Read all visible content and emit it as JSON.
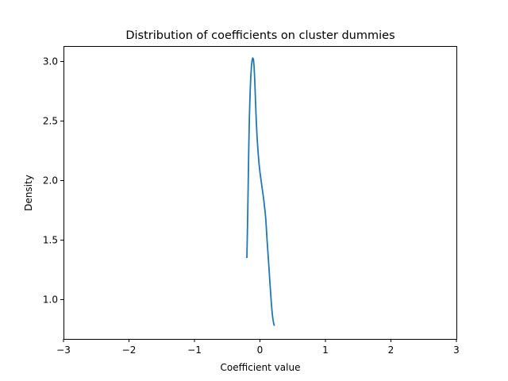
{
  "chart_data": {
    "type": "line",
    "title": "Distribution of coefficients on cluster dummies",
    "xlabel": "Coefficient value",
    "ylabel": "Density",
    "xlim": [
      -3,
      3
    ],
    "ylim": [
      0.67,
      3.13
    ],
    "xticks": [
      -3,
      -2,
      -1,
      0,
      1,
      2,
      3
    ],
    "xtick_labels": [
      "−3",
      "−2",
      "−1",
      "0",
      "1",
      "2",
      "3"
    ],
    "yticks": [
      1.0,
      1.5,
      2.0,
      2.5,
      3.0
    ],
    "ytick_labels": [
      "1.0",
      "1.5",
      "2.0",
      "2.5",
      "3.0"
    ],
    "grid": false,
    "legend": "none",
    "series": [
      {
        "color": "#1f77b4",
        "x": [
          -0.2,
          -0.19,
          -0.18,
          -0.17,
          -0.16,
          -0.15,
          -0.14,
          -0.13,
          -0.12,
          -0.11,
          -0.1,
          -0.09,
          -0.08,
          -0.07,
          -0.06,
          -0.05,
          -0.04,
          -0.03,
          -0.02,
          -0.01,
          0.0,
          0.01,
          0.02,
          0.03,
          0.04,
          0.05,
          0.06,
          0.07,
          0.08,
          0.09,
          0.1,
          0.11,
          0.12,
          0.13,
          0.14,
          0.15,
          0.16,
          0.17,
          0.18,
          0.19,
          0.2,
          0.21,
          0.22
        ],
        "y": [
          1.35,
          1.62,
          1.95,
          2.3,
          2.56,
          2.74,
          2.87,
          2.96,
          3.01,
          3.03,
          3.02,
          2.96,
          2.85,
          2.7,
          2.55,
          2.43,
          2.33,
          2.25,
          2.18,
          2.12,
          2.07,
          2.03,
          1.99,
          1.95,
          1.91,
          1.87,
          1.83,
          1.78,
          1.73,
          1.67,
          1.58,
          1.49,
          1.41,
          1.33,
          1.25,
          1.16,
          1.08,
          1.0,
          0.93,
          0.87,
          0.83,
          0.8,
          0.78
        ]
      }
    ]
  }
}
